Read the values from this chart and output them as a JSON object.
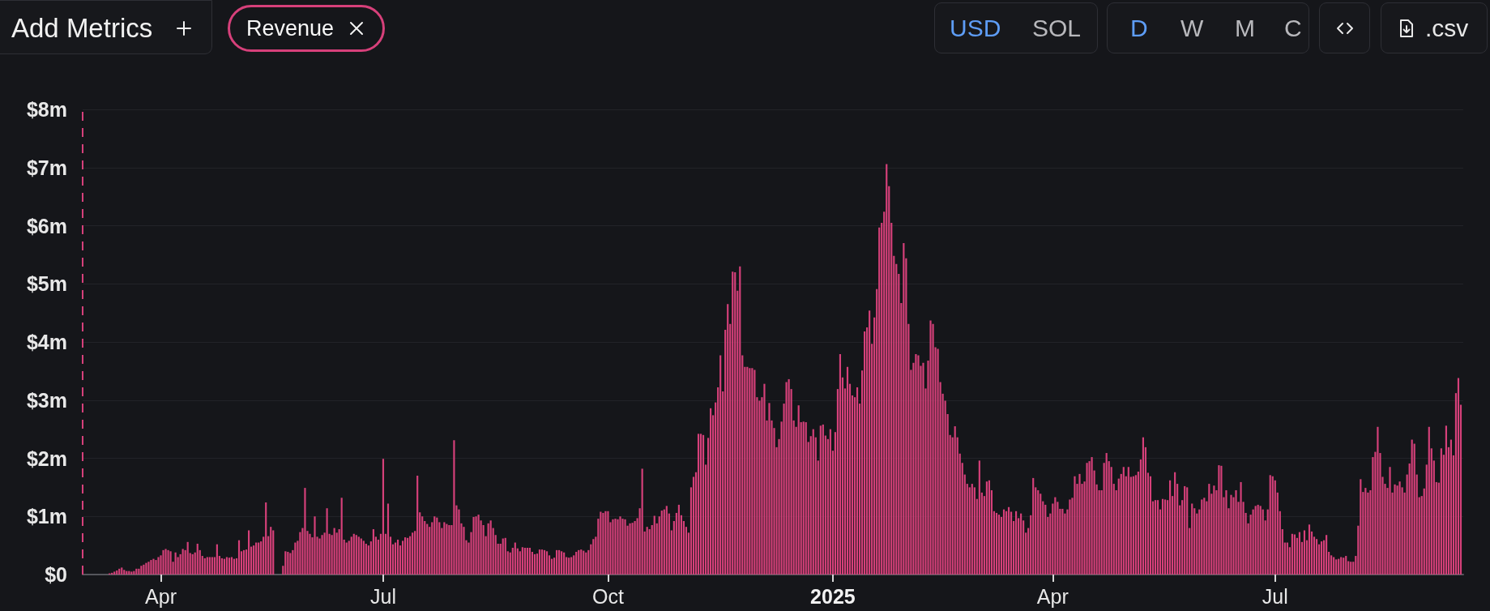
{
  "chart_data": {
    "type": "bar",
    "color": "#d6407a",
    "x": [
      "2024-03-11",
      "2024-03-12",
      "2024-03-13",
      "2024-03-14",
      "2024-03-15",
      "2024-03-16",
      "2024-03-17",
      "2024-03-18",
      "2024-03-19",
      "2024-03-20",
      "2024-03-21",
      "2024-03-22",
      "2024-03-23",
      "2024-03-24",
      "2024-03-25",
      "2024-03-26",
      "2024-03-27",
      "2024-03-28",
      "2024-03-29",
      "2024-03-30",
      "2024-03-31",
      "2024-04-01",
      "2024-04-02",
      "2024-04-03",
      "2024-04-04",
      "2024-04-05",
      "2024-04-06",
      "2024-04-07",
      "2024-04-08",
      "2024-04-09",
      "2024-04-10",
      "2024-04-11",
      "2024-04-12",
      "2024-04-13",
      "2024-04-14",
      "2024-04-15",
      "2024-04-16",
      "2024-04-17",
      "2024-04-18",
      "2024-04-19",
      "2024-04-20",
      "2024-04-21",
      "2024-04-22",
      "2024-04-23",
      "2024-04-24",
      "2024-04-25",
      "2024-04-26",
      "2024-04-27",
      "2024-04-28",
      "2024-04-29",
      "2024-04-30",
      "2024-05-01",
      "2024-05-02",
      "2024-05-03",
      "2024-05-04",
      "2024-05-05",
      "2024-05-06",
      "2024-05-07",
      "2024-05-08",
      "2024-05-09",
      "2024-05-10",
      "2024-05-11",
      "2024-05-12",
      "2024-05-13",
      "2024-05-14",
      "2024-05-15",
      "2024-05-16",
      "2024-05-17",
      "2024-05-18",
      "2024-05-19",
      "2024-05-20",
      "2024-05-21",
      "2024-05-22",
      "2024-05-23",
      "2024-05-24",
      "2024-05-25",
      "2024-05-26",
      "2024-05-27",
      "2024-05-28",
      "2024-05-29",
      "2024-05-30",
      "2024-05-31",
      "2024-06-01",
      "2024-06-02",
      "2024-06-03",
      "2024-06-04",
      "2024-06-05",
      "2024-06-06",
      "2024-06-07",
      "2024-06-08",
      "2024-06-09",
      "2024-06-10",
      "2024-06-11",
      "2024-06-12",
      "2024-06-13",
      "2024-06-14",
      "2024-06-15",
      "2024-06-16",
      "2024-06-17",
      "2024-06-18",
      "2024-06-19",
      "2024-06-20",
      "2024-06-21",
      "2024-06-22",
      "2024-06-23",
      "2024-06-24",
      "2024-06-25",
      "2024-06-26",
      "2024-06-27",
      "2024-06-28",
      "2024-06-29",
      "2024-06-30",
      "2024-07-01",
      "2024-07-02",
      "2024-07-03",
      "2024-07-04",
      "2024-07-05",
      "2024-07-06",
      "2024-07-07",
      "2024-07-08",
      "2024-07-09",
      "2024-07-10",
      "2024-07-11",
      "2024-07-12",
      "2024-07-13",
      "2024-07-14",
      "2024-07-15",
      "2024-07-16",
      "2024-07-17",
      "2024-07-18",
      "2024-07-19",
      "2024-07-20",
      "2024-07-21",
      "2024-07-22",
      "2024-07-23",
      "2024-07-24",
      "2024-07-25",
      "2024-07-26",
      "2024-07-27",
      "2024-07-28",
      "2024-07-29",
      "2024-07-30",
      "2024-07-31",
      "2024-08-01",
      "2024-08-02",
      "2024-08-03",
      "2024-08-04",
      "2024-08-05",
      "2024-08-06",
      "2024-08-07",
      "2024-08-08",
      "2024-08-09",
      "2024-08-10",
      "2024-08-11",
      "2024-08-12",
      "2024-08-13",
      "2024-08-14",
      "2024-08-15",
      "2024-08-16",
      "2024-08-17",
      "2024-08-18",
      "2024-08-19",
      "2024-08-20",
      "2024-08-21",
      "2024-08-22",
      "2024-08-23",
      "2024-08-24",
      "2024-08-25",
      "2024-08-26",
      "2024-08-27",
      "2024-08-28",
      "2024-08-29",
      "2024-08-30",
      "2024-08-31",
      "2024-09-01",
      "2024-09-02",
      "2024-09-03",
      "2024-09-04",
      "2024-09-05",
      "2024-09-06",
      "2024-09-07",
      "2024-09-08",
      "2024-09-09",
      "2024-09-10",
      "2024-09-11",
      "2024-09-12",
      "2024-09-13",
      "2024-09-14",
      "2024-09-15",
      "2024-09-16",
      "2024-09-17",
      "2024-09-18",
      "2024-09-19",
      "2024-09-20",
      "2024-09-21",
      "2024-09-22",
      "2024-09-23",
      "2024-09-24",
      "2024-09-25",
      "2024-09-26",
      "2024-09-27",
      "2024-09-28",
      "2024-09-29",
      "2024-09-30",
      "2024-10-01",
      "2024-10-02",
      "2024-10-03",
      "2024-10-04",
      "2024-10-05",
      "2024-10-06",
      "2024-10-07",
      "2024-10-08",
      "2024-10-09",
      "2024-10-10",
      "2024-10-11",
      "2024-10-12",
      "2024-10-13",
      "2024-10-14",
      "2024-10-15",
      "2024-10-16",
      "2024-10-17",
      "2024-10-18",
      "2024-10-19",
      "2024-10-20",
      "2024-10-21",
      "2024-10-22",
      "2024-10-23",
      "2024-10-24",
      "2024-10-25",
      "2024-10-26",
      "2024-10-27",
      "2024-10-28",
      "2024-10-29",
      "2024-10-30",
      "2024-10-31",
      "2024-11-01",
      "2024-11-02",
      "2024-11-03",
      "2024-11-04",
      "2024-11-05",
      "2024-11-06",
      "2024-11-07",
      "2024-11-08",
      "2024-11-09",
      "2024-11-10",
      "2024-11-11",
      "2024-11-12",
      "2024-11-13",
      "2024-11-14",
      "2024-11-15",
      "2024-11-16",
      "2024-11-17",
      "2024-11-18",
      "2024-11-19",
      "2024-11-20",
      "2024-11-21",
      "2024-11-22",
      "2024-11-23",
      "2024-11-24",
      "2024-11-25",
      "2024-11-26",
      "2024-11-27",
      "2024-11-28",
      "2024-11-29",
      "2024-11-30",
      "2024-12-01",
      "2024-12-02",
      "2024-12-03",
      "2024-12-04",
      "2024-12-05",
      "2024-12-06",
      "2024-12-07",
      "2024-12-08",
      "2024-12-09",
      "2024-12-10",
      "2024-12-11",
      "2024-12-12",
      "2024-12-13",
      "2024-12-14",
      "2024-12-15",
      "2024-12-16",
      "2024-12-17",
      "2024-12-18",
      "2024-12-19",
      "2024-12-20",
      "2024-12-21",
      "2024-12-22",
      "2024-12-23",
      "2024-12-24",
      "2024-12-25",
      "2024-12-26",
      "2024-12-27",
      "2024-12-28",
      "2024-12-29",
      "2024-12-30",
      "2024-12-31",
      "2025-01-01",
      "2025-01-02",
      "2025-01-03",
      "2025-01-04",
      "2025-01-05",
      "2025-01-06",
      "2025-01-07",
      "2025-01-08",
      "2025-01-09",
      "2025-01-10",
      "2025-01-11",
      "2025-01-12",
      "2025-01-13",
      "2025-01-14",
      "2025-01-15",
      "2025-01-16",
      "2025-01-17",
      "2025-01-18",
      "2025-01-19",
      "2025-01-20",
      "2025-01-21",
      "2025-01-22",
      "2025-01-23",
      "2025-01-24",
      "2025-01-25",
      "2025-01-26",
      "2025-01-27",
      "2025-01-28",
      "2025-01-29",
      "2025-01-30",
      "2025-01-31",
      "2025-02-01",
      "2025-02-02",
      "2025-02-03",
      "2025-02-04",
      "2025-02-05",
      "2025-02-06",
      "2025-02-07",
      "2025-02-08",
      "2025-02-09",
      "2025-02-10",
      "2025-02-11",
      "2025-02-12",
      "2025-02-13",
      "2025-02-14",
      "2025-02-15",
      "2025-02-16",
      "2025-02-17",
      "2025-02-18",
      "2025-02-19",
      "2025-02-20",
      "2025-02-21",
      "2025-02-22",
      "2025-02-23",
      "2025-02-24",
      "2025-02-25",
      "2025-02-26",
      "2025-02-27",
      "2025-02-28",
      "2025-03-01",
      "2025-03-02",
      "2025-03-03",
      "2025-03-04",
      "2025-03-05",
      "2025-03-06",
      "2025-03-07",
      "2025-03-08",
      "2025-03-09",
      "2025-03-10",
      "2025-03-11",
      "2025-03-12",
      "2025-03-13",
      "2025-03-14",
      "2025-03-15",
      "2025-03-16",
      "2025-03-17",
      "2025-03-18",
      "2025-03-19",
      "2025-03-20",
      "2025-03-21",
      "2025-03-22",
      "2025-03-23",
      "2025-03-24",
      "2025-03-25",
      "2025-03-26",
      "2025-03-27",
      "2025-03-28",
      "2025-03-29",
      "2025-03-30",
      "2025-03-31",
      "2025-04-01",
      "2025-04-02",
      "2025-04-03",
      "2025-04-04",
      "2025-04-05",
      "2025-04-06",
      "2025-04-07",
      "2025-04-08",
      "2025-04-09",
      "2025-04-10",
      "2025-04-11",
      "2025-04-12",
      "2025-04-13",
      "2025-04-14",
      "2025-04-15",
      "2025-04-16",
      "2025-04-17",
      "2025-04-18",
      "2025-04-19",
      "2025-04-20",
      "2025-04-21",
      "2025-04-22",
      "2025-04-23",
      "2025-04-24",
      "2025-04-25",
      "2025-04-26",
      "2025-04-27",
      "2025-04-28",
      "2025-04-29",
      "2025-04-30",
      "2025-05-01",
      "2025-05-02",
      "2025-05-03",
      "2025-05-04",
      "2025-05-05",
      "2025-05-06",
      "2025-05-07",
      "2025-05-08",
      "2025-05-09",
      "2025-05-10",
      "2025-05-11",
      "2025-05-12",
      "2025-05-13",
      "2025-05-14",
      "2025-05-15",
      "2025-05-16",
      "2025-05-17",
      "2025-05-18",
      "2025-05-19",
      "2025-05-20",
      "2025-05-21",
      "2025-05-22",
      "2025-05-23",
      "2025-05-24",
      "2025-05-25",
      "2025-05-26",
      "2025-05-27",
      "2025-05-28",
      "2025-05-29",
      "2025-05-30",
      "2025-05-31",
      "2025-06-01",
      "2025-06-02",
      "2025-06-03",
      "2025-06-04",
      "2025-06-05",
      "2025-06-06",
      "2025-06-07",
      "2025-06-08",
      "2025-06-09",
      "2025-06-10",
      "2025-06-11",
      "2025-06-12",
      "2025-06-13",
      "2025-06-14",
      "2025-06-15",
      "2025-06-16",
      "2025-06-17",
      "2025-06-18",
      "2025-06-19",
      "2025-06-20",
      "2025-06-21",
      "2025-06-22",
      "2025-06-23",
      "2025-06-24",
      "2025-06-25",
      "2025-06-26",
      "2025-06-27",
      "2025-06-28",
      "2025-06-29",
      "2025-06-30",
      "2025-07-01",
      "2025-07-02",
      "2025-07-03",
      "2025-07-04",
      "2025-07-05",
      "2025-07-06",
      "2025-07-07",
      "2025-07-08",
      "2025-07-09",
      "2025-07-10",
      "2025-07-11",
      "2025-07-12",
      "2025-07-13",
      "2025-07-14",
      "2025-07-15",
      "2025-07-16",
      "2025-07-17",
      "2025-07-18",
      "2025-07-19",
      "2025-07-20",
      "2025-07-21",
      "2025-07-22",
      "2025-07-23",
      "2025-07-24",
      "2025-07-25",
      "2025-07-26",
      "2025-07-27",
      "2025-07-28",
      "2025-07-29",
      "2025-07-30",
      "2025-07-31",
      "2025-08-01",
      "2025-08-02",
      "2025-08-03",
      "2025-08-04",
      "2025-08-05",
      "2025-08-06",
      "2025-08-07",
      "2025-08-08",
      "2025-08-09",
      "2025-08-10",
      "2025-08-11",
      "2025-08-12",
      "2025-08-13",
      "2025-08-14",
      "2025-08-15",
      "2025-08-16",
      "2025-08-17",
      "2025-08-18",
      "2025-08-19",
      "2025-08-20",
      "2025-08-21",
      "2025-08-22",
      "2025-08-23",
      "2025-08-24",
      "2025-08-25",
      "2025-08-26",
      "2025-08-27",
      "2025-08-28",
      "2025-08-29",
      "2025-08-30",
      "2025-08-31",
      "2025-09-01",
      "2025-09-02",
      "2025-09-03",
      "2025-09-04",
      "2025-09-05",
      "2025-09-06",
      "2025-09-07",
      "2025-09-08",
      "2025-09-09",
      "2025-09-10",
      "2025-09-11",
      "2025-09-12",
      "2025-09-13",
      "2025-09-14",
      "2025-09-15"
    ],
    "values": [
      0.02,
      0.03,
      0.05,
      0.07,
      0.1,
      0.12,
      0.08,
      0.06,
      0.06,
      0.05,
      0.06,
      0.1,
      0.1,
      0.15,
      0.17,
      0.2,
      0.22,
      0.25,
      0.27,
      0.25,
      0.3,
      0.33,
      0.42,
      0.44,
      0.42,
      0.4,
      0.22,
      0.38,
      0.3,
      0.35,
      0.44,
      0.42,
      0.56,
      0.37,
      0.35,
      0.38,
      0.53,
      0.42,
      0.32,
      0.28,
      0.3,
      0.3,
      0.3,
      0.3,
      0.52,
      0.32,
      0.28,
      0.27,
      0.3,
      0.29,
      0.3,
      0.27,
      0.28,
      0.59,
      0.4,
      0.42,
      0.43,
      0.76,
      0.48,
      0.5,
      0.55,
      0.55,
      0.57,
      0.65,
      1.24,
      0.66,
      0.82,
      0.76,
      null,
      null,
      null,
      0.15,
      0.4,
      0.39,
      0.37,
      0.42,
      0.55,
      0.58,
      0.73,
      0.8,
      1.49,
      0.75,
      0.7,
      0.64,
      1.0,
      0.65,
      0.62,
      0.68,
      0.72,
      1.14,
      0.7,
      0.68,
      0.8,
      0.72,
      0.78,
      1.32,
      0.6,
      0.55,
      0.58,
      0.65,
      0.7,
      0.68,
      0.65,
      0.62,
      0.58,
      0.53,
      0.5,
      0.57,
      0.78,
      0.65,
      0.6,
      0.7,
      1.99,
      0.7,
      1.22,
      0.65,
      0.52,
      0.55,
      0.6,
      0.5,
      0.58,
      0.64,
      0.63,
      0.66,
      0.72,
      0.75,
      1.7,
      1.07,
      1.0,
      0.92,
      0.87,
      0.82,
      0.9,
      1.0,
      0.98,
      0.9,
      0.8,
      0.9,
      0.87,
      0.85,
      0.85,
      2.31,
      1.19,
      1.12,
      0.88,
      0.82,
      0.59,
      0.55,
      0.73,
      0.99,
      1.0,
      1.03,
      0.93,
      0.85,
      0.66,
      0.88,
      0.93,
      0.8,
      0.68,
      0.53,
      0.53,
      0.62,
      0.63,
      0.4,
      0.38,
      0.46,
      0.55,
      0.45,
      0.4,
      0.47,
      0.46,
      0.46,
      0.46,
      0.39,
      0.35,
      0.36,
      0.43,
      0.43,
      0.42,
      0.4,
      0.33,
      0.27,
      0.29,
      0.42,
      0.42,
      0.4,
      0.38,
      0.3,
      0.29,
      0.3,
      0.33,
      0.39,
      0.42,
      0.43,
      0.41,
      0.38,
      0.42,
      0.52,
      0.61,
      0.65,
      0.96,
      1.08,
      1.06,
      1.09,
      1.09,
      0.9,
      0.95,
      0.96,
      0.95,
      1.0,
      0.96,
      0.95,
      0.84,
      0.88,
      0.89,
      0.92,
      0.97,
      1.14,
      1.82,
      0.74,
      0.82,
      0.78,
      0.85,
      1.01,
      0.88,
      1.0,
      1.1,
      1.12,
      1.18,
      1.05,
      0.76,
      0.92,
      1.06,
      1.2,
      1.02,
      0.92,
      0.82,
      0.72,
      1.5,
      1.68,
      1.76,
      2.42,
      2.42,
      2.4,
      1.89,
      2.35,
      2.86,
      2.74,
      2.96,
      3.22,
      3.77,
      3.15,
      4.21,
      4.65,
      4.31,
      5.21,
      5.2,
      4.88,
      5.3,
      3.77,
      3.57,
      3.57,
      3.55,
      3.55,
      3.52,
      3.05,
      2.99,
      3.05,
      3.28,
      2.65,
      2.95,
      2.65,
      2.52,
      2.19,
      2.33,
      2.63,
      2.94,
      3.31,
      3.36,
      3.19,
      2.65,
      2.54,
      2.91,
      2.62,
      2.63,
      2.62,
      2.28,
      2.38,
      2.5,
      2.36,
      1.96,
      2.56,
      2.58,
      2.39,
      2.33,
      2.5,
      2.13,
      2.45,
      3.19,
      3.79,
      3.39,
      3.2,
      3.57,
      3.28,
      3.08,
      3.05,
      3.22,
      2.94,
      3.51,
      4.18,
      4.25,
      4.54,
      3.97,
      4.42,
      4.91,
      5.97,
      6.05,
      6.24,
      7.06,
      6.68,
      6.05,
      5.48,
      5.34,
      5.17,
      4.67,
      5.7,
      5.44,
      4.31,
      3.52,
      3.64,
      3.79,
      3.77,
      3.59,
      3.64,
      3.2,
      3.68,
      4.37,
      4.31,
      3.91,
      3.88,
      3.31,
      3.11,
      2.99,
      2.76,
      2.4,
      2.36,
      2.55,
      2.36,
      2.08,
      1.92,
      1.72,
      1.56,
      1.5,
      1.56,
      1.5,
      1.3,
      1.96,
      1.41,
      1.35,
      1.6,
      1.62,
      1.45,
      1.09,
      1.06,
      1.03,
      0.99,
      1.12,
      1.09,
      1.16,
      1.08,
      0.92,
      1.09,
      0.97,
      1.05,
      0.93,
      0.72,
      0.8,
      1.02,
      1.66,
      1.5,
      1.45,
      1.39,
      1.26,
      1.2,
      0.99,
      1.05,
      1.22,
      1.33,
      1.25,
      1.13,
      1.13,
      1.05,
      1.12,
      1.29,
      1.32,
      1.69,
      1.56,
      1.73,
      1.56,
      1.6,
      1.92,
      1.95,
      2.02,
      1.79,
      1.55,
      1.45,
      1.45,
      1.92,
      2.09,
      1.95,
      1.85,
      1.56,
      1.45,
      1.65,
      1.73,
      1.85,
      1.69,
      1.85,
      1.68,
      1.69,
      1.71,
      1.77,
      1.98,
      2.36,
      2.19,
      1.75,
      1.69,
      1.26,
      1.28,
      1.28,
      1.12,
      1.3,
      1.29,
      1.28,
      1.62,
      1.35,
      1.76,
      1.56,
      1.19,
      1.28,
      1.52,
      1.5,
      0.8,
      1.22,
      1.14,
      1.05,
      1.12,
      1.29,
      1.32,
      1.26,
      1.56,
      1.39,
      1.53,
      1.45,
      1.88,
      1.87,
      1.33,
      1.45,
      1.14,
      1.37,
      1.33,
      1.45,
      1.25,
      1.59,
      1.25,
      1.06,
      0.88,
      1.03,
      1.12,
      1.18,
      1.2,
      1.18,
      1.12,
      0.93,
      1.12,
      1.71,
      1.69,
      1.62,
      1.41,
      1.09,
      0.78,
      0.55,
      0.55,
      0.47,
      0.7,
      0.69,
      0.63,
      0.73,
      0.56,
      0.76,
      0.59,
      0.86,
      0.74,
      0.65,
      0.61,
      0.52,
      0.57,
      0.59,
      0.68,
      0.39,
      0.33,
      0.3,
      0.26,
      0.27,
      0.3,
      0.29,
      0.32,
      0.23,
      0.22,
      0.22,
      0.32,
      0.84,
      1.64,
      1.42,
      1.49,
      1.41,
      1.45,
      2.02,
      2.11,
      2.54,
      2.09,
      1.68,
      1.56,
      1.49,
      1.85,
      1.41,
      1.55,
      1.53,
      1.6,
      1.5,
      1.41,
      1.72,
      1.91,
      2.32,
      2.25,
      1.72,
      1.33,
      1.35,
      1.48,
      1.89,
      2.54,
      2.17,
      1.96,
      1.59,
      1.58,
      2.17,
      2.06,
      2.56,
      2.19,
      2.32,
      2.05,
      3.12,
      3.38,
      2.92
    ],
    "xlim": [
      "2024-02-29",
      "2025-09-16"
    ],
    "xticks": [
      {
        "value": "2024-04-01",
        "label": "Apr"
      },
      {
        "value": "2024-07-01",
        "label": "Jul"
      },
      {
        "value": "2024-10-01",
        "label": "Oct"
      },
      {
        "value": "2025-01-01",
        "label": "2025"
      },
      {
        "value": "2025-04-01",
        "label": "Apr"
      },
      {
        "value": "2025-07-01",
        "label": "Jul"
      }
    ],
    "ylim": [
      0,
      8
    ],
    "yticks": [
      {
        "value": 0,
        "label": "$0"
      },
      {
        "value": 1,
        "label": "$1m"
      },
      {
        "value": 2,
        "label": "$2m"
      },
      {
        "value": 3,
        "label": "$3m"
      },
      {
        "value": 4,
        "label": "$4m"
      },
      {
        "value": 5,
        "label": "$5m"
      },
      {
        "value": 6,
        "label": "$6m"
      },
      {
        "value": 7,
        "label": "$7m"
      },
      {
        "value": 8,
        "label": "$8m"
      }
    ],
    "grid": "y",
    "ref_lines": [
      {
        "axis": "x",
        "value": "2024-02-29",
        "color": "#d6407a",
        "line_style": "dashed"
      }
    ],
    "annotations": [
      "Add Metrics",
      "Revenue",
      "USD",
      "SOL",
      "D",
      "W",
      "M",
      "C",
      ".csv"
    ]
  }
}
